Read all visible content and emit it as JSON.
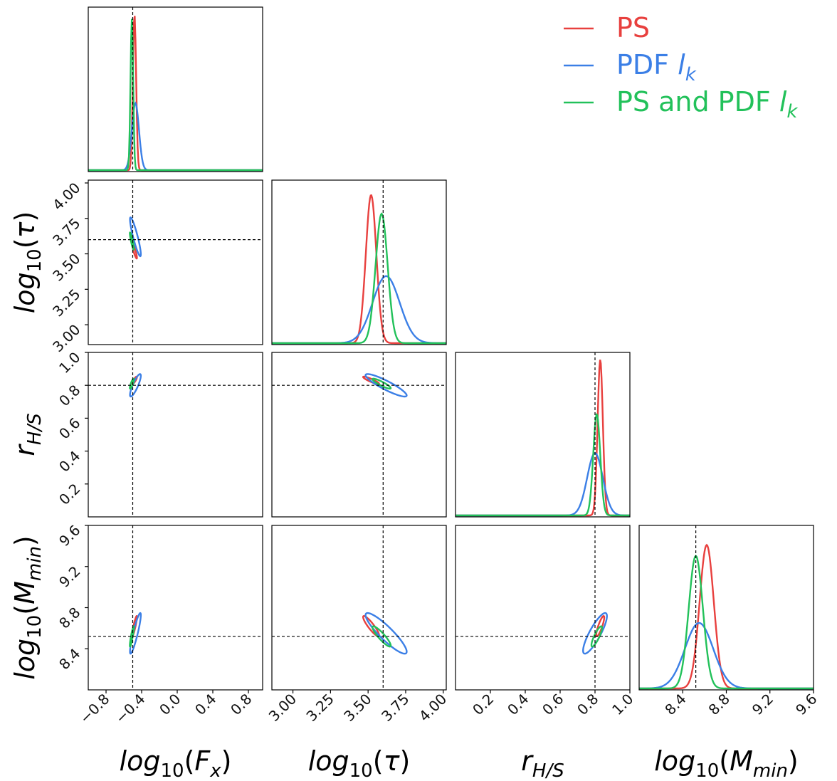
{
  "chart_data": {
    "type": "corner",
    "truth": [
      -0.5,
      3.6,
      0.8,
      8.52
    ],
    "params": [
      {
        "key": "fx",
        "label_base": "log",
        "label_sub": "10",
        "label_arg": "(",
        "label_var": "F",
        "label_var_sub": "x",
        "label_close": ")",
        "range": [
          -1.0,
          0.96
        ],
        "ticks": [
          -0.8,
          -0.4,
          0.0,
          0.4,
          0.8
        ],
        "tick_labels": [
          "−0.8",
          "−0.4",
          "0.0",
          "0.4",
          "0.8"
        ]
      },
      {
        "key": "tau",
        "label_base": "log",
        "label_sub": "10",
        "label_arg": "(",
        "label_var": "τ",
        "label_var_sub": "",
        "label_close": ")",
        "range": [
          2.86,
          4.02
        ],
        "ticks": [
          3.0,
          3.25,
          3.5,
          3.75,
          4.0
        ],
        "tick_labels": [
          "3.00",
          "3.25",
          "3.50",
          "3.75",
          "4.00"
        ]
      },
      {
        "key": "rhs",
        "label_base": "r",
        "label_sub": "H/S",
        "label_arg": "",
        "label_var": "",
        "label_var_sub": "",
        "label_close": "",
        "range": [
          0.0,
          1.0
        ],
        "ticks": [
          0.2,
          0.4,
          0.6,
          0.8,
          1.0
        ],
        "tick_labels": [
          "0.2",
          "0.4",
          "0.6",
          "0.8",
          "1.0"
        ]
      },
      {
        "key": "mmin",
        "label_base": "log",
        "label_sub": "10",
        "label_arg": "(",
        "label_var": "M",
        "label_var_sub": "min",
        "label_close": ")",
        "range": [
          8.0,
          9.6
        ],
        "ticks": [
          8.4,
          8.8,
          9.2,
          9.6
        ],
        "tick_labels": [
          "8.4",
          "8.8",
          "9.2",
          "9.6"
        ]
      }
    ],
    "series": [
      {
        "name": "PS",
        "color": "#e8403e",
        "mean": [
          -0.48,
          3.52,
          0.83,
          8.62
        ],
        "std": [
          0.018,
          0.035,
          0.015,
          0.065
        ],
        "peak": [
          1.0,
          0.95,
          1.0,
          0.92
        ],
        "corr": {
          "1-0": -0.9,
          "2-0": 0.85,
          "2-1": -0.9,
          "3-0": 0.9,
          "3-1": -0.9,
          "3-2": 0.85
        }
      },
      {
        "name": "PDF ",
        "name_var": "l",
        "name_var_sub": "k",
        "color": "#3b7fe6",
        "mean": [
          -0.47,
          3.62,
          0.8,
          8.55
        ],
        "std": [
          0.04,
          0.09,
          0.045,
          0.13
        ],
        "peak": [
          0.43,
          0.43,
          0.4,
          0.42
        ],
        "corr": {
          "1-0": -0.9,
          "2-0": 0.85,
          "2-1": -0.9,
          "3-0": 0.9,
          "3-1": -0.9,
          "3-2": 0.85
        }
      },
      {
        "name": "PS and PDF ",
        "name_var": "l",
        "name_var_sub": "k",
        "color": "#22c15a",
        "mean": [
          -0.51,
          3.59,
          0.81,
          8.52
        ],
        "std": [
          0.015,
          0.04,
          0.02,
          0.065
        ],
        "peak": [
          0.97,
          0.83,
          0.65,
          0.85
        ],
        "corr": {
          "1-0": -0.9,
          "2-0": 0.85,
          "2-1": -0.9,
          "3-0": 0.9,
          "3-1": -0.9,
          "3-2": 0.85
        }
      }
    ],
    "legend": "top-right",
    "grid": false
  }
}
